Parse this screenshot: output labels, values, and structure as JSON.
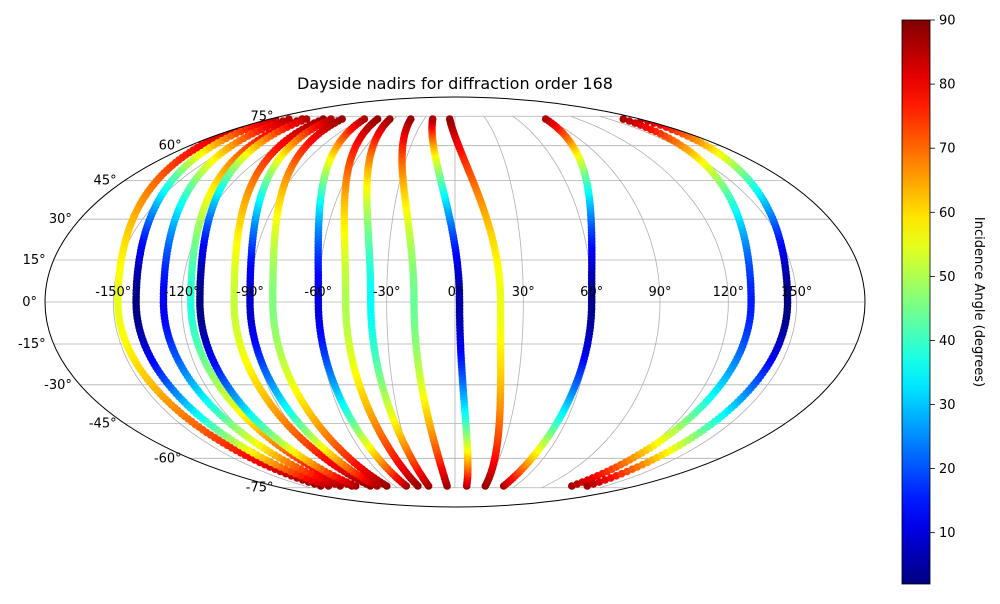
{
  "chart_data": {
    "type": "scatter",
    "projection": "mollweide",
    "title": "Dayside nadirs for diffraction order 168",
    "xlabel": "",
    "ylabel": "",
    "grid": true,
    "longitude_ticks": [
      "-150°",
      "-120°",
      "-90°",
      "-60°",
      "-30°",
      "0°",
      "30°",
      "60°",
      "90°",
      "120°",
      "150°"
    ],
    "latitude_ticks": [
      "75°",
      "60°",
      "45°",
      "30°",
      "15°",
      "0°",
      "-15°",
      "-30°",
      "-45°",
      "-60°",
      "-75°"
    ],
    "colorbar": {
      "label": "Incidence Angle (degrees)",
      "colormap": "jet",
      "range": [
        2,
        90
      ],
      "ticks": [
        "10",
        "20",
        "30",
        "40",
        "50",
        "60",
        "70",
        "80",
        "90"
      ]
    },
    "tracks": [
      {
        "lon_eq": -148,
        "side": -1,
        "min_inc": 55
      },
      {
        "lon_eq": -140,
        "side": -1,
        "min_inc": 2
      },
      {
        "lon_eq": -128,
        "side": -1,
        "min_inc": 12
      },
      {
        "lon_eq": -116,
        "side": -1,
        "min_inc": 38
      },
      {
        "lon_eq": -112,
        "side": -1,
        "min_inc": 2
      },
      {
        "lon_eq": -97,
        "side": -1,
        "min_inc": 52
      },
      {
        "lon_eq": -90,
        "side": -1,
        "min_inc": 8
      },
      {
        "lon_eq": -80,
        "side": -1,
        "min_inc": 46
      },
      {
        "lon_eq": -60,
        "side": -1,
        "min_inc": 10
      },
      {
        "lon_eq": -48,
        "side": -1,
        "min_inc": 50
      },
      {
        "lon_eq": -37,
        "side": -1,
        "min_inc": 35
      },
      {
        "lon_eq": -18,
        "side": -1,
        "min_inc": 44
      },
      {
        "lon_eq": 2,
        "side": -1,
        "min_inc": 5
      },
      {
        "lon_eq": 20,
        "side": -1,
        "min_inc": 55
      },
      {
        "lon_eq": 60,
        "side": 1,
        "min_inc": 3
      },
      {
        "lon_eq": 130,
        "side": 1,
        "min_inc": 15
      },
      {
        "lon_eq": 146,
        "side": 1,
        "min_inc": 2
      }
    ]
  }
}
